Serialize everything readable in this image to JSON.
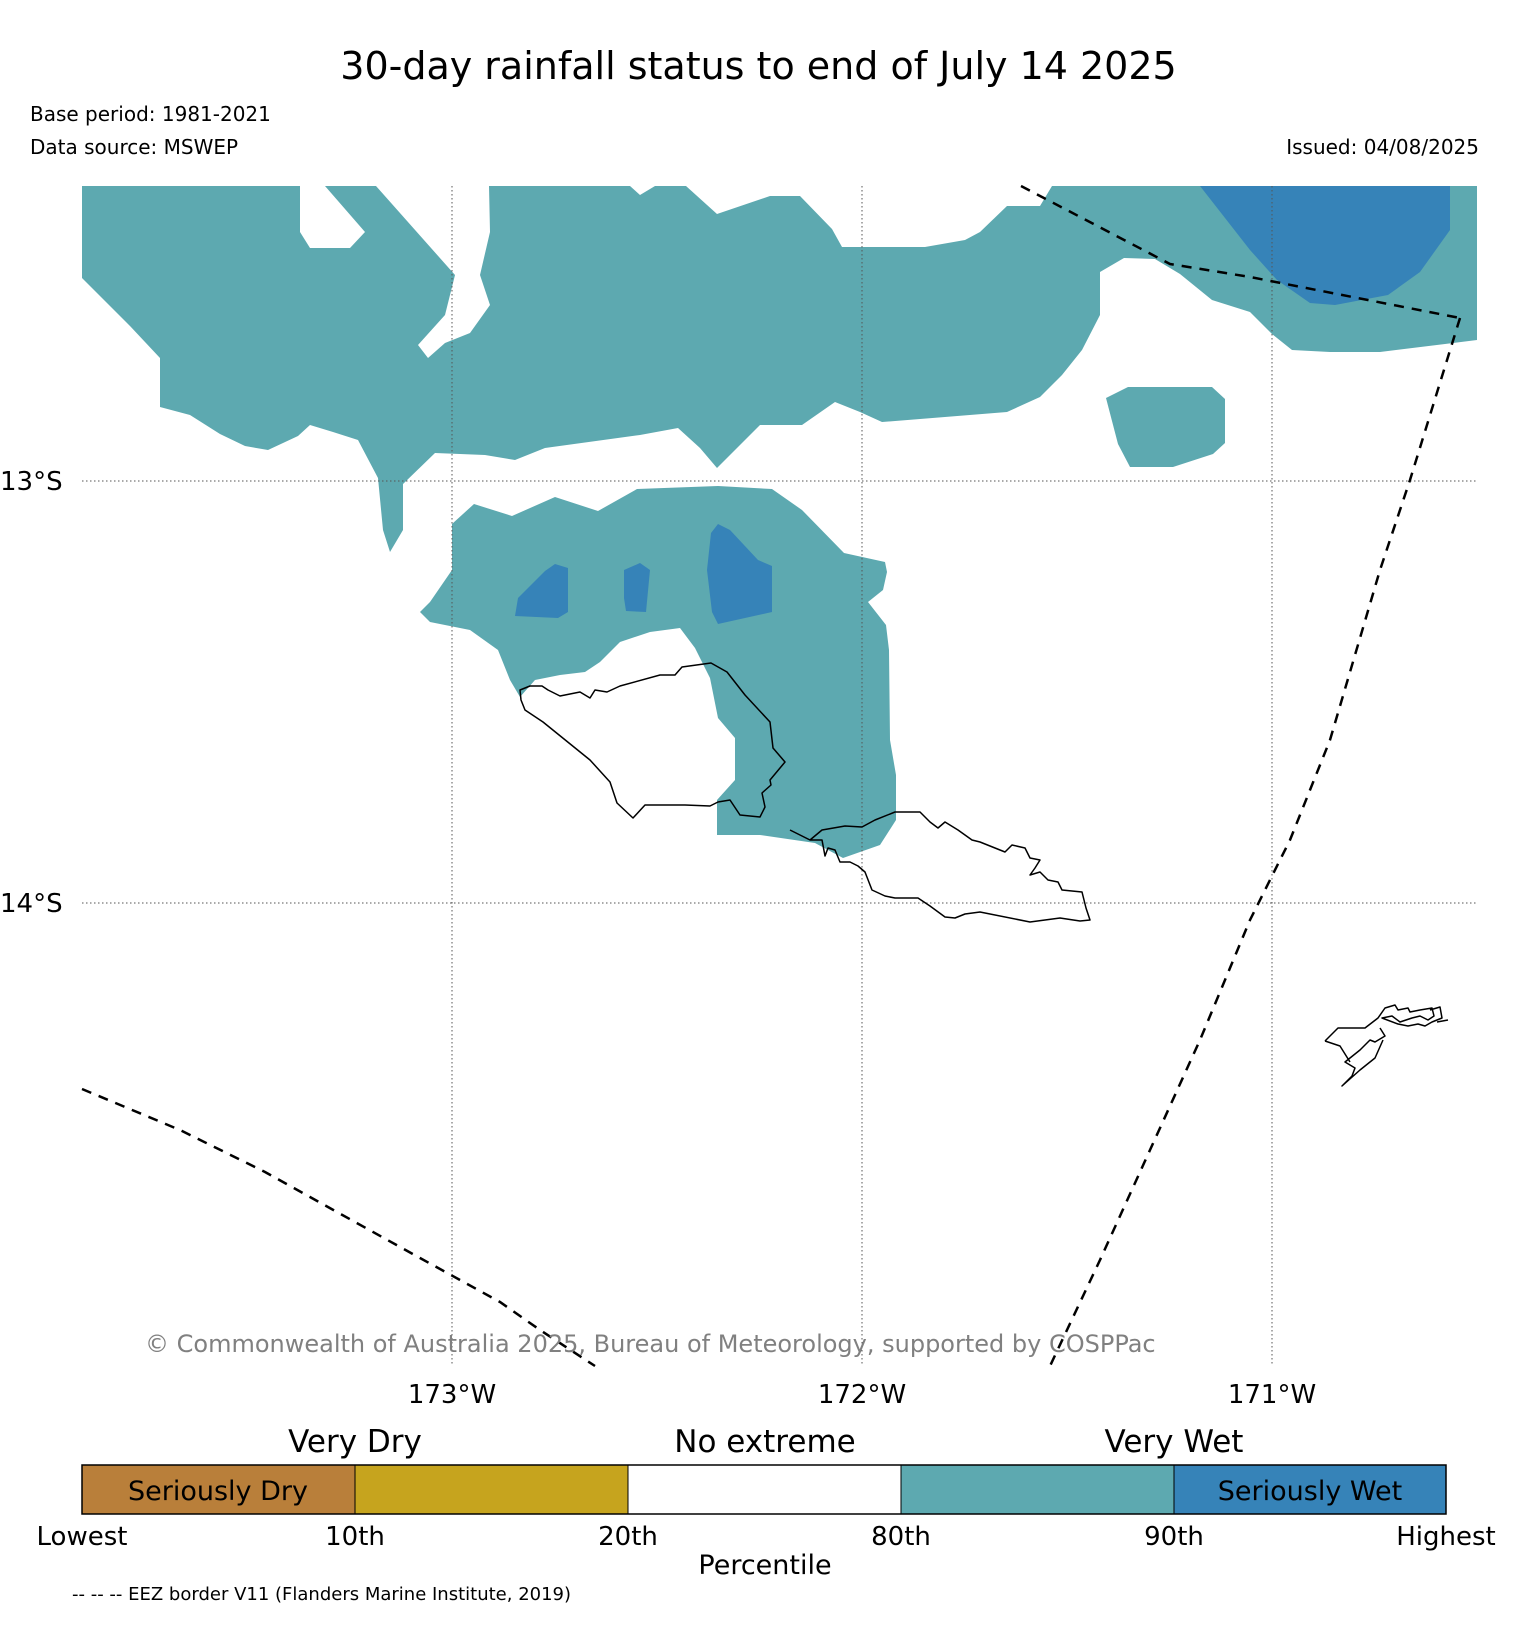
{
  "title": "30-day rainfall status to end of July 14 2025",
  "base_period": "Base period: 1981-2021",
  "data_source": "Data source: MSWEP",
  "issued": "Issued: 04/08/2025",
  "copyright": "© Commonwealth of Australia 2025, Bureau of Meteorology, supported by COSPPac",
  "latitude_labels": [
    "13°S",
    "14°S"
  ],
  "longitude_labels": [
    "173°W",
    "172°W",
    "171°W"
  ],
  "colorbar": {
    "group_labels": [
      "Very Dry",
      "No extreme",
      "Very Wet"
    ],
    "segments": [
      {
        "label": "Seriously Dry",
        "color": "#b97f3a"
      },
      {
        "label": "",
        "color": "#c6a41e"
      },
      {
        "label": "",
        "color": "#ffffff"
      },
      {
        "label": "",
        "color": "#5da9b0"
      },
      {
        "label": "Seriously Wet",
        "color": "#3683b8"
      }
    ],
    "ticks": [
      "Lowest",
      "10th",
      "20th",
      "80th",
      "90th",
      "Highest"
    ],
    "axis_label": "Percentile"
  },
  "eez_note": "-- -- -- EEZ border V11 (Flanders Marine Institute, 2019)",
  "colors": {
    "very_wet": "#5da9b0",
    "seriously_wet": "#3683b8",
    "gridline": "#555555",
    "copyright_text": "#808080"
  }
}
